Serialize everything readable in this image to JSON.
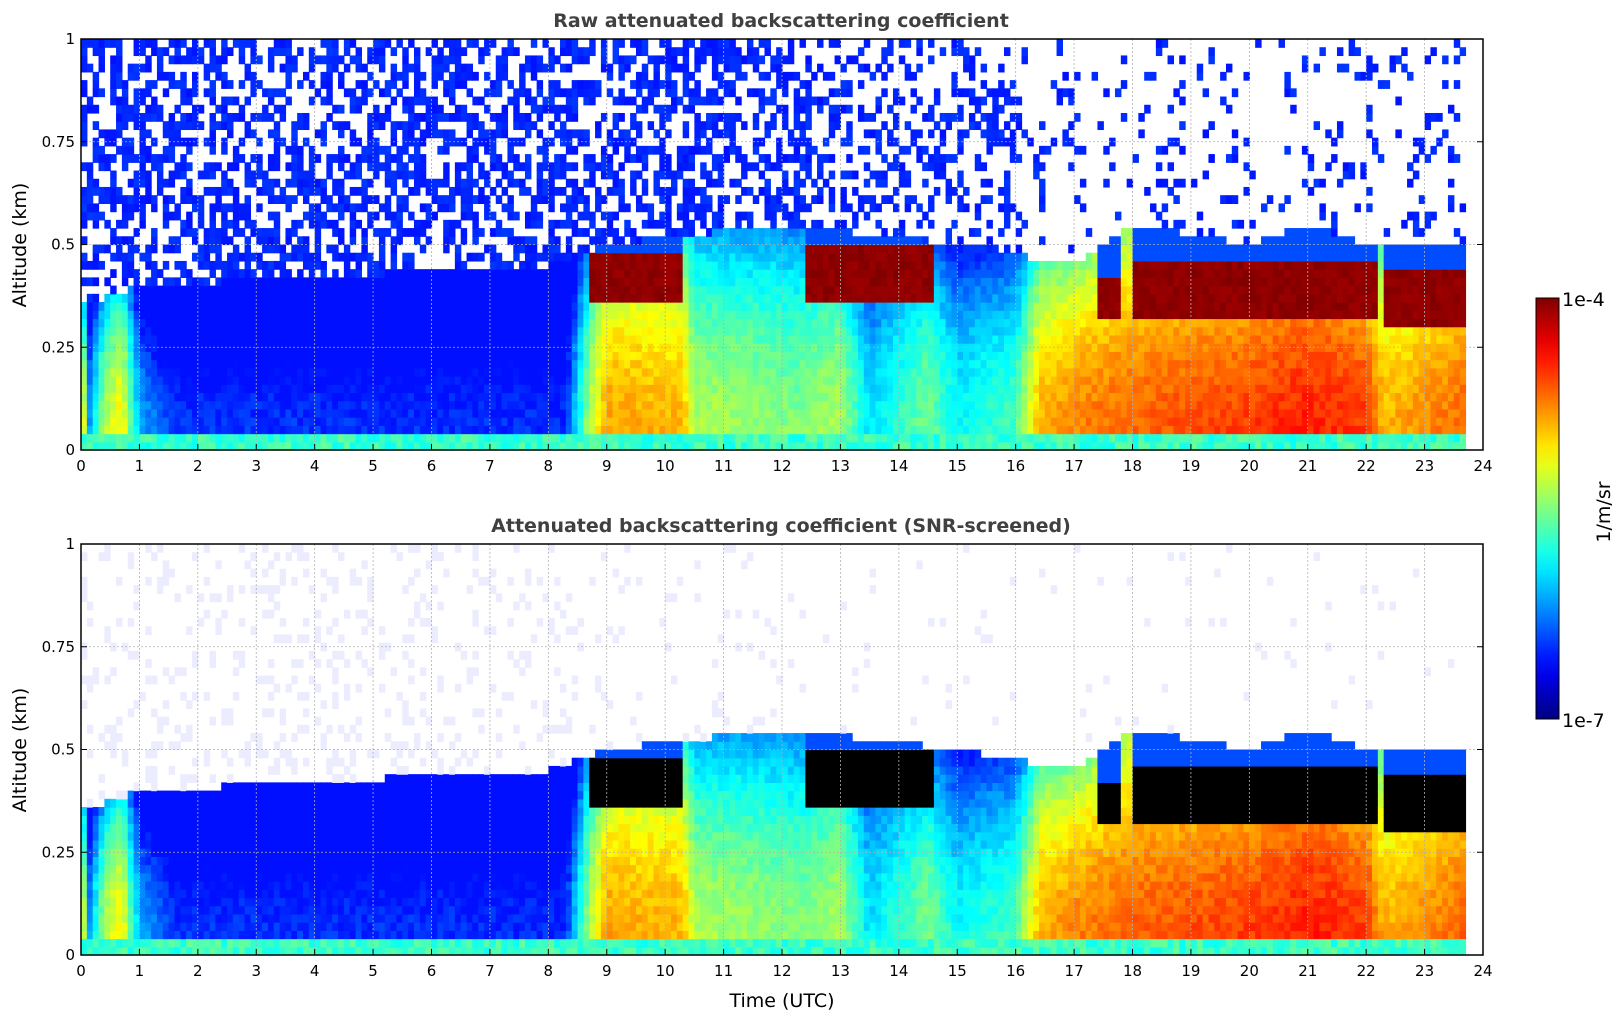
{
  "chart_data": [
    {
      "type": "heatmap",
      "title": "Raw attenuated backscattering coefficient",
      "xlabel": "",
      "ylabel": "Altitude (km)",
      "xlim": [
        0,
        24
      ],
      "ylim": [
        0,
        1
      ],
      "xticks": [
        "0",
        "1",
        "2",
        "3",
        "4",
        "5",
        "6",
        "7",
        "8",
        "9",
        "10",
        "11",
        "12",
        "13",
        "14",
        "15",
        "16",
        "17",
        "18",
        "19",
        "20",
        "21",
        "22",
        "23",
        "24"
      ],
      "yticks": [
        "0",
        "0.25",
        "0.5",
        "0.75",
        "1"
      ],
      "screened": false,
      "features": {
        "data_end_hour": 23.7,
        "aerosol_layer_top_km": [
          [
            0,
            0.35
          ],
          [
            1,
            0.4
          ],
          [
            8,
            0.45
          ],
          [
            9,
            0.5
          ],
          [
            12,
            0.55
          ],
          [
            15,
            0.5
          ],
          [
            17,
            0.45
          ],
          [
            18,
            0.55
          ],
          [
            20,
            0.5
          ],
          [
            21,
            0.55
          ],
          [
            22,
            0.5
          ],
          [
            23.7,
            0.5
          ]
        ],
        "cloud_layers": [
          {
            "start": 8.7,
            "end": 10.3,
            "base_km": 0.37,
            "top_km": 0.48
          },
          {
            "start": 12.4,
            "end": 14.6,
            "base_km": 0.36,
            "top_km": 0.5
          },
          {
            "start": 17.4,
            "end": 17.8,
            "base_km": 0.33,
            "top_km": 0.42
          },
          {
            "start": 18.0,
            "end": 22.2,
            "base_km": 0.32,
            "top_km": 0.46
          },
          {
            "start": 22.3,
            "end": 23.7,
            "base_km": 0.3,
            "top_km": 0.44
          }
        ]
      }
    },
    {
      "type": "heatmap",
      "title": "Attenuated backscattering coefficient (SNR-screened)",
      "xlabel": "Time (UTC)",
      "ylabel": "Altitude (km)",
      "xlim": [
        0,
        24
      ],
      "ylim": [
        0,
        1
      ],
      "xticks": [
        "0",
        "1",
        "2",
        "3",
        "4",
        "5",
        "6",
        "7",
        "8",
        "9",
        "10",
        "11",
        "12",
        "13",
        "14",
        "15",
        "16",
        "17",
        "18",
        "19",
        "20",
        "21",
        "22",
        "23",
        "24"
      ],
      "yticks": [
        "0",
        "0.25",
        "0.5",
        "0.75",
        "1"
      ],
      "screened": true
    }
  ],
  "colorbar": {
    "label": "1/m/sr",
    "min_label": "1e-7",
    "max_label": "1e-4",
    "colormap": "jet",
    "low_color": "#ececff",
    "high_color": "#800000"
  }
}
